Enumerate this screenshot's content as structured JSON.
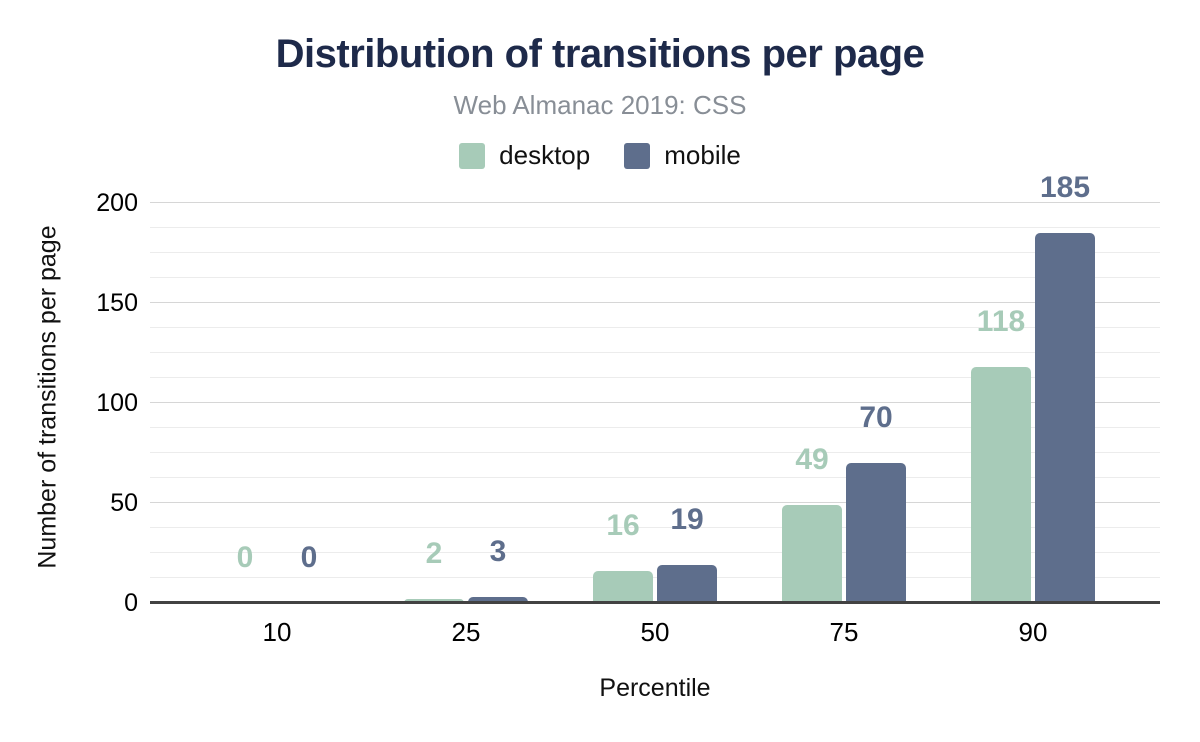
{
  "chart_data": {
    "type": "bar",
    "title": "Distribution of transitions per page",
    "subtitle": "Web Almanac 2019: CSS",
    "xlabel": "Percentile",
    "ylabel": "Number of transitions per page",
    "categories": [
      "10",
      "25",
      "50",
      "75",
      "90"
    ],
    "series": [
      {
        "name": "desktop",
        "color": "#a7cbb8",
        "values": [
          0,
          2,
          16,
          49,
          118
        ]
      },
      {
        "name": "mobile",
        "color": "#5e6e8c",
        "values": [
          0,
          3,
          19,
          70,
          185
        ]
      }
    ],
    "ylim": [
      0,
      200
    ],
    "yticks": [
      0,
      50,
      100,
      150,
      200
    ],
    "minor_grid_step": 12.5,
    "grid": true,
    "legend_position": "top",
    "value_labels": true
  },
  "colors": {
    "title": "#1e2a4a",
    "subtitle": "#888e96",
    "gridline_minor": "#ececec",
    "gridline_major": "#d6d6d6",
    "baseline": "#424242",
    "axis_text": "#000000"
  }
}
